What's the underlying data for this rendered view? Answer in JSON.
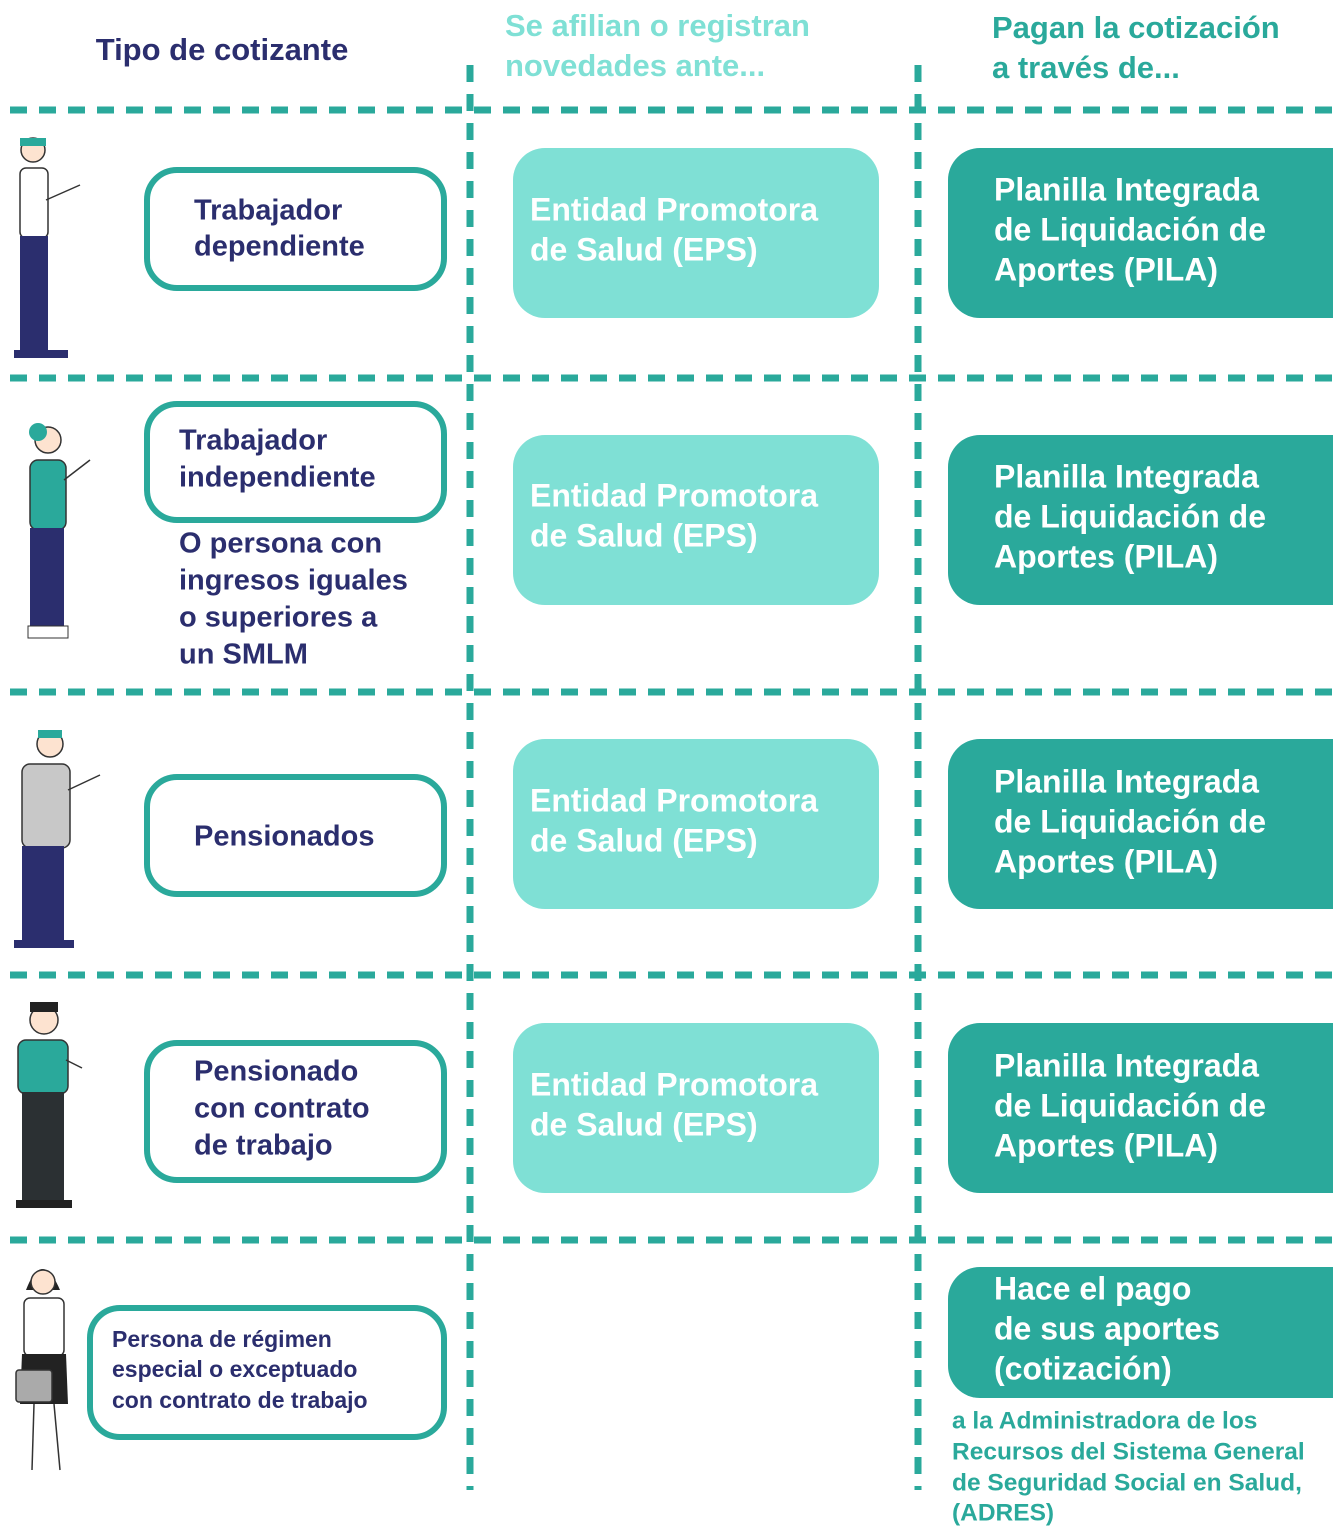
{
  "headers": [
    [
      "Tipo de cotizante"
    ],
    [
      "Se afilian o registran",
      "novedades ante..."
    ],
    [
      "Pagan la cotización",
      "a través de..."
    ]
  ],
  "rows": [
    {
      "type": [
        "Trabajador",
        "dependiente"
      ],
      "eps": [
        "Entidad Promotora",
        "de Salud (EPS)"
      ],
      "pay": [
        "Planilla Integrada",
        "de Liquidación de",
        "Aportes (PILA)"
      ]
    },
    {
      "type": [
        "Trabajador",
        "independiente"
      ],
      "note": [
        "O persona con",
        "ingresos iguales",
        "o superiores a",
        "un SMLM"
      ],
      "eps": [
        "Entidad Promotora",
        "de Salud (EPS)"
      ],
      "pay": [
        "Planilla Integrada",
        "de Liquidación de",
        "Aportes (PILA)"
      ]
    },
    {
      "type": [
        "Pensionados"
      ],
      "eps": [
        "Entidad Promotora",
        "de Salud (EPS)"
      ],
      "pay": [
        "Planilla Integrada",
        "de Liquidación de",
        "Aportes (PILA)"
      ]
    },
    {
      "type": [
        "Pensionado",
        "con contrato",
        "de trabajo"
      ],
      "eps": [
        "Entidad Promotora",
        "de Salud (EPS)"
      ],
      "pay": [
        "Planilla Integrada",
        "de Liquidación de",
        "Aportes (PILA)"
      ]
    },
    {
      "type": [
        "Persona de régimen",
        "especial o exceptuado",
        "con contrato de trabajo"
      ],
      "pay": [
        "Hace el pago",
        "de sus aportes",
        "(cotización)"
      ],
      "footnote": [
        "a la Administradora de los",
        "Recursos del Sistema General",
        "de Seguridad Social en Salud,",
        "(ADRES)"
      ]
    }
  ]
}
